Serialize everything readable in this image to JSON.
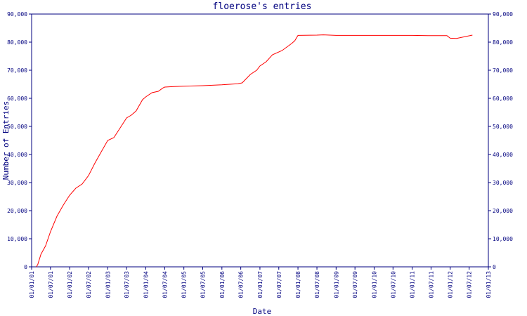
{
  "chart_data": {
    "type": "line",
    "title": "floerose's entries",
    "xlabel": "Date",
    "ylabel": "Number of Entries",
    "x_tick_labels": [
      "01/01/01",
      "01/07/01",
      "01/01/02",
      "01/07/02",
      "01/01/03",
      "01/07/03",
      "01/01/04",
      "01/07/04",
      "01/01/05",
      "01/07/05",
      "01/01/06",
      "01/07/06",
      "01/01/07",
      "01/07/07",
      "01/01/08",
      "01/07/08",
      "01/01/09",
      "01/07/09",
      "01/01/10",
      "01/07/10",
      "01/01/11",
      "01/07/11",
      "01/01/12",
      "01/07/12",
      "01/01/13"
    ],
    "y_ticks": [
      0,
      10000,
      20000,
      30000,
      40000,
      50000,
      60000,
      70000,
      80000,
      90000
    ],
    "y_tick_labels": [
      "0",
      "10,000",
      "20,000",
      "30,000",
      "40,000",
      "50,000",
      "60,000",
      "70,000",
      "80,000",
      "90,000"
    ],
    "ylim": [
      0,
      90000
    ],
    "xlim": [
      "2001-01-01",
      "2013-01-01"
    ],
    "grid": false,
    "line_color": "#ff0000",
    "axis_color": "#00007f",
    "series": [
      {
        "x": [
          "2001-02-15",
          "2001-03-01",
          "2001-04-01",
          "2001-05-15",
          "2001-07-01",
          "2001-09-01",
          "2001-11-01",
          "2002-01-01",
          "2002-03-01",
          "2002-05-01",
          "2002-07-01",
          "2002-09-01",
          "2002-11-01",
          "2003-01-01",
          "2003-03-01",
          "2003-05-01",
          "2003-07-01",
          "2003-08-15",
          "2003-10-01",
          "2003-12-01",
          "2004-01-01",
          "2004-03-01",
          "2004-05-01",
          "2004-06-15",
          "2004-07-01",
          "2004-10-01",
          "2005-01-01",
          "2005-07-01",
          "2006-01-01",
          "2006-06-01",
          "2006-07-15",
          "2006-10-01",
          "2006-12-01",
          "2007-01-01",
          "2007-03-01",
          "2007-05-01",
          "2007-08-01",
          "2007-11-01",
          "2007-12-01",
          "2008-01-01",
          "2008-07-01",
          "2008-09-01",
          "2009-01-01",
          "2010-01-01",
          "2011-01-01",
          "2011-06-01",
          "2011-12-01",
          "2012-01-01",
          "2012-03-01",
          "2012-08-01"
        ],
        "y": [
          0,
          800,
          4500,
          7500,
          12500,
          18000,
          22000,
          25500,
          28000,
          29500,
          32500,
          37000,
          41000,
          45000,
          46000,
          49500,
          53000,
          54000,
          55500,
          59500,
          60500,
          62000,
          62500,
          63700,
          64000,
          64200,
          64300,
          64500,
          64800,
          65200,
          65500,
          68500,
          70000,
          71500,
          73000,
          75500,
          77000,
          79500,
          80500,
          82400,
          82500,
          82600,
          82400,
          82400,
          82400,
          82300,
          82300,
          81400,
          81300,
          82500
        ]
      }
    ]
  }
}
